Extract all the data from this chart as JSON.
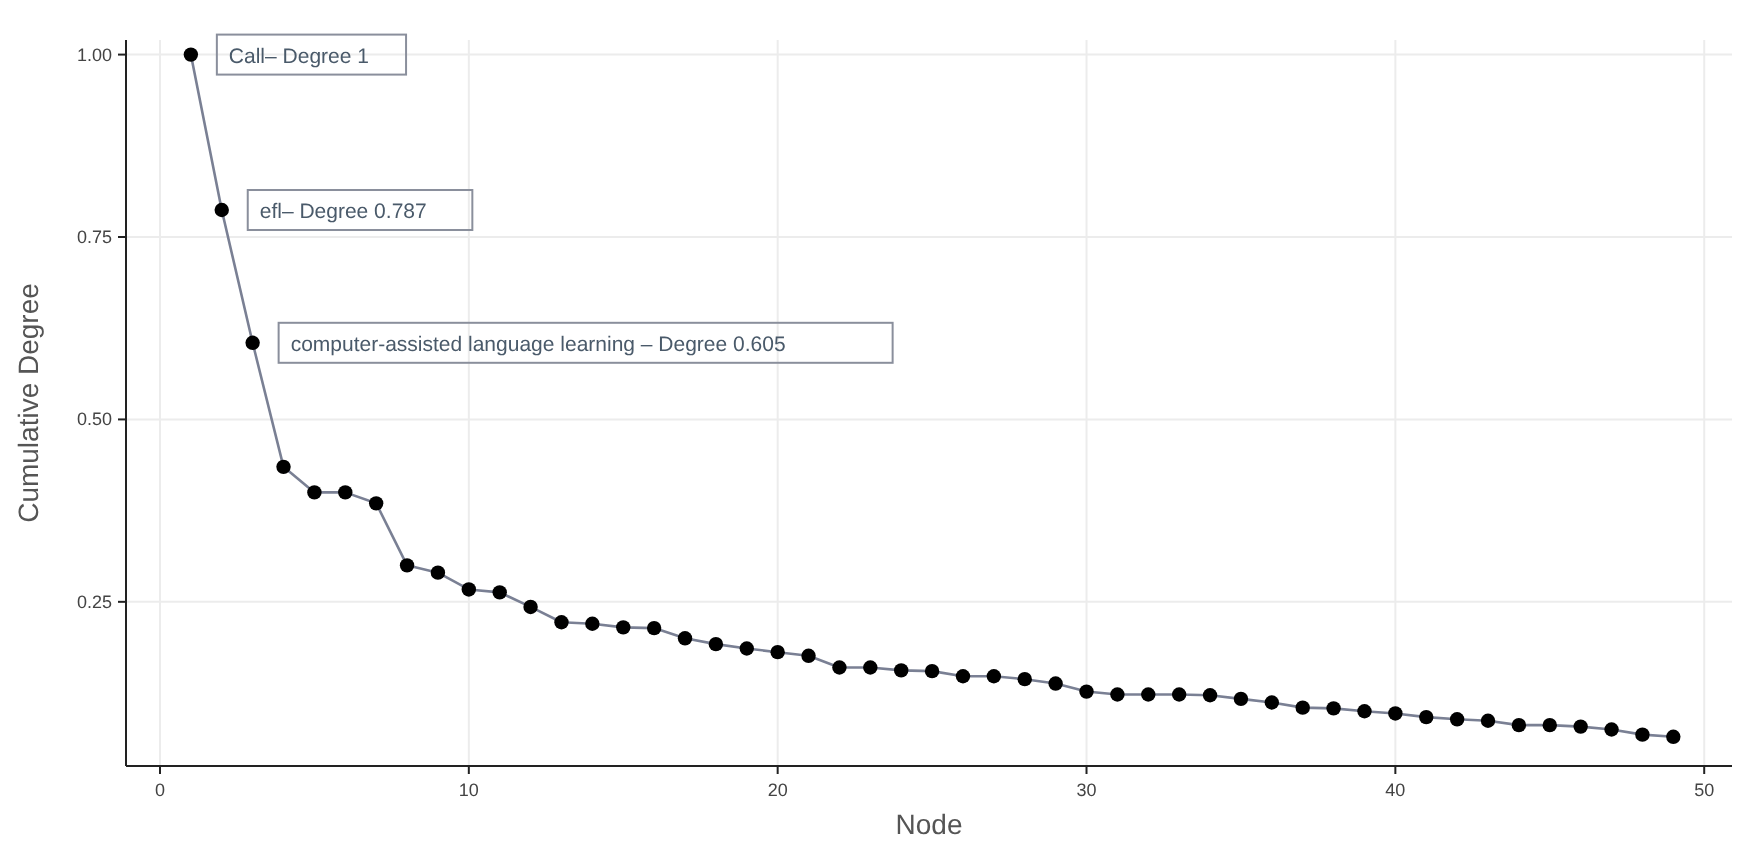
{
  "chart_data": {
    "type": "line",
    "xlabel": "Node",
    "ylabel": "Cumulative Degree",
    "x": [
      1,
      2,
      3,
      4,
      5,
      6,
      7,
      8,
      9,
      10,
      11,
      12,
      13,
      14,
      15,
      16,
      17,
      18,
      19,
      20,
      21,
      22,
      23,
      24,
      25,
      26,
      27,
      28,
      29,
      30,
      31,
      32,
      33,
      34,
      35,
      36,
      37,
      38,
      39,
      40,
      41,
      42,
      43,
      44,
      45,
      46,
      47,
      48,
      49
    ],
    "series": [
      {
        "color": "#7a8094",
        "values": [
          1,
          0.787,
          0.605,
          0.435,
          0.4,
          0.4,
          0.385,
          0.3,
          0.29,
          0.267,
          0.263,
          0.243,
          0.222,
          0.22,
          0.215,
          0.214,
          0.2,
          0.192,
          0.186,
          0.181,
          0.176,
          0.16,
          0.16,
          0.156,
          0.155,
          0.148,
          0.148,
          0.144,
          0.138,
          0.127,
          0.123,
          0.123,
          0.123,
          0.122,
          0.117,
          0.112,
          0.105,
          0.104,
          0.1,
          0.097,
          0.092,
          0.089,
          0.087,
          0.081,
          0.081,
          0.079,
          0.075,
          0.068,
          0.065
        ]
      }
    ],
    "xlim": [
      -1.1,
      50.9
    ],
    "ylim": [
      0.025,
      1.02
    ],
    "xticks": [
      0,
      10,
      20,
      30,
      40,
      50
    ],
    "yticks": [
      {
        "value": 0.25,
        "label": "0.25"
      },
      {
        "value": 0.5,
        "label": "0.50"
      },
      {
        "value": 0.75,
        "label": "0.75"
      },
      {
        "value": 1,
        "label": "1.00"
      }
    ],
    "grid": true,
    "marker": "circle",
    "line_style": "solid",
    "annotations": [
      {
        "text": "Call– Degree 1",
        "x": 1,
        "y": 1
      },
      {
        "text": "efl– Degree 0.787",
        "x": 2,
        "y": 0.787
      },
      {
        "text": "computer-assisted language learning – Degree 0.605",
        "x": 3,
        "y": 0.605
      }
    ]
  }
}
